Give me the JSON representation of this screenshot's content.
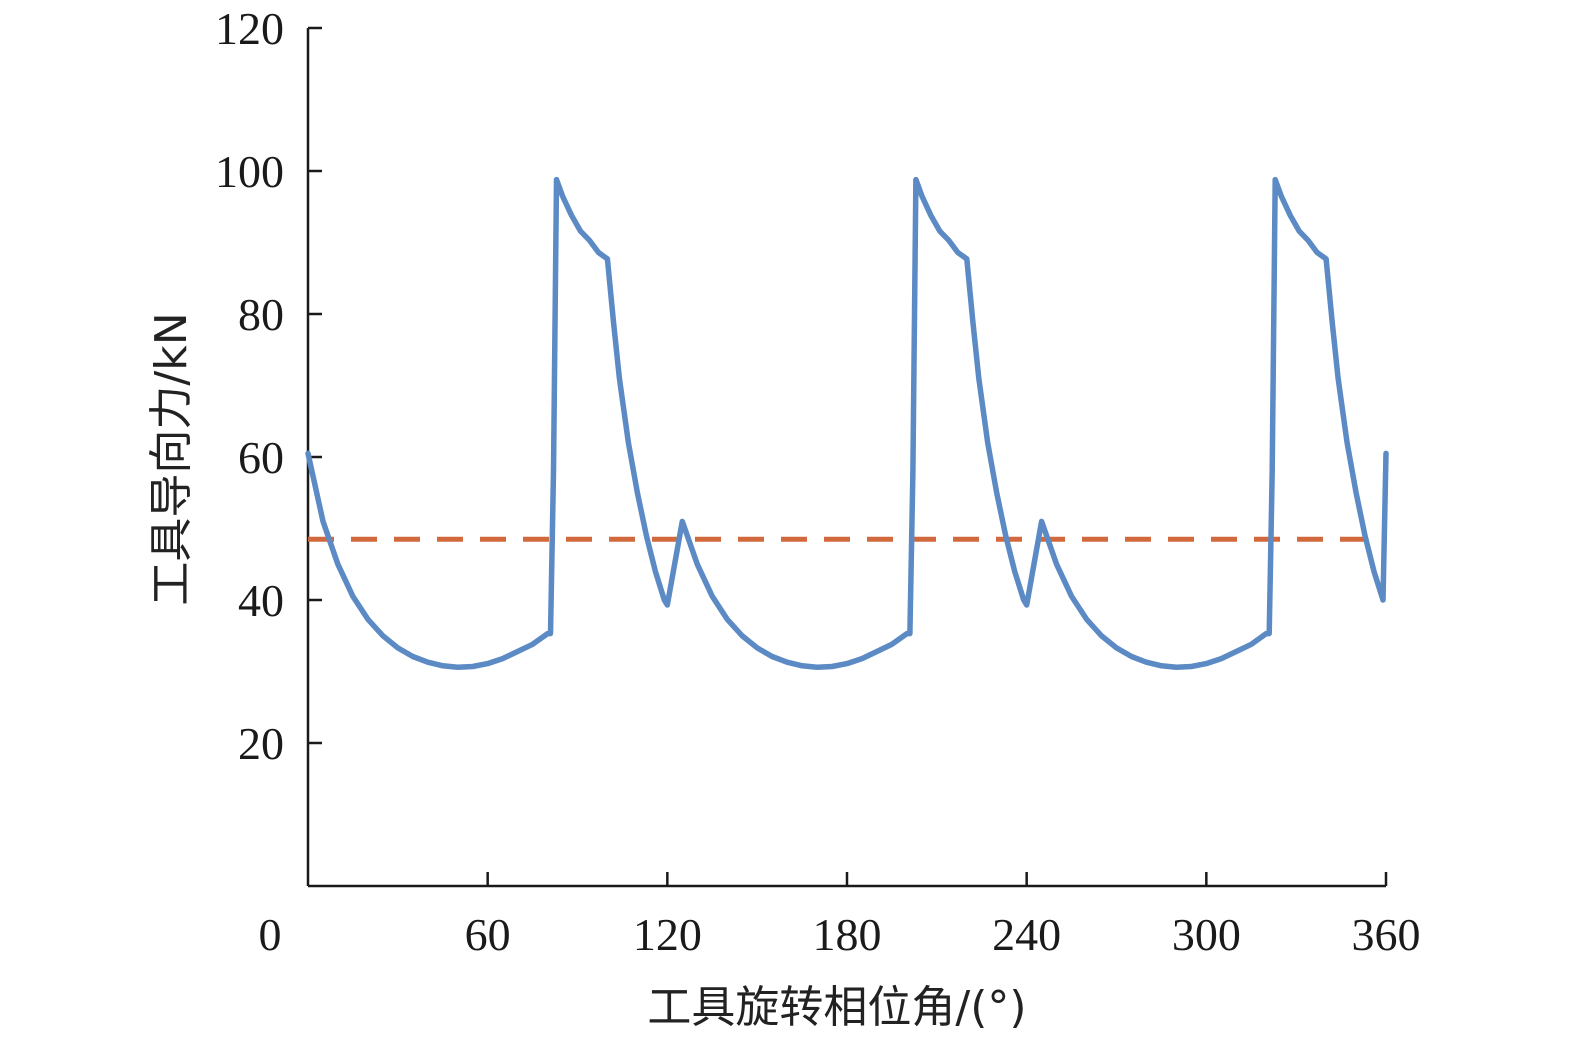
{
  "chart_data": {
    "type": "line",
    "xlabel": "工具旋转相位角/(°)",
    "ylabel": "工具导向力/kN",
    "xlim": [
      0,
      360
    ],
    "ylim": [
      0,
      120
    ],
    "x_ticks": [
      0,
      60,
      120,
      180,
      240,
      300,
      360
    ],
    "x_tick_labels": [
      "0",
      "60",
      "120",
      "180",
      "240",
      "300",
      "360"
    ],
    "y_ticks": [
      20,
      40,
      60,
      80,
      100,
      120
    ],
    "y_tick_labels": [
      "20",
      "40",
      "60",
      "80",
      "100",
      "120"
    ],
    "grid": false,
    "legend": false,
    "series": [
      {
        "style": "solid",
        "color": "#5B8AC4",
        "period": 120,
        "points": [
          [
            0,
            60.5
          ],
          [
            5,
            51
          ],
          [
            10,
            45
          ],
          [
            15,
            40.5
          ],
          [
            20,
            37.3
          ],
          [
            25,
            35
          ],
          [
            30,
            33.3
          ],
          [
            35,
            32.1
          ],
          [
            40,
            31.3
          ],
          [
            45,
            30.8
          ],
          [
            50,
            30.6
          ],
          [
            55,
            30.7
          ],
          [
            60,
            31.1
          ],
          [
            65,
            31.8
          ],
          [
            70,
            32.8
          ],
          [
            75,
            33.8
          ],
          [
            80,
            35.3
          ],
          [
            81,
            35.3
          ],
          [
            82,
            58
          ],
          [
            83,
            98.8
          ],
          [
            85,
            96.5
          ],
          [
            88,
            93.8
          ],
          [
            91,
            91.6
          ],
          [
            94,
            90.3
          ],
          [
            97,
            88.6
          ],
          [
            100,
            87.7
          ],
          [
            102,
            79
          ],
          [
            104,
            71
          ],
          [
            107,
            62
          ],
          [
            110,
            55
          ],
          [
            113,
            49
          ],
          [
            116,
            44
          ],
          [
            119,
            40
          ],
          [
            120,
            39.3
          ]
        ],
        "end_value_at_360": 60.5
      },
      {
        "style": "dashed",
        "color": "#D2693C",
        "values": [
          [
            0,
            48.5
          ],
          [
            360,
            48.5
          ]
        ]
      }
    ]
  }
}
